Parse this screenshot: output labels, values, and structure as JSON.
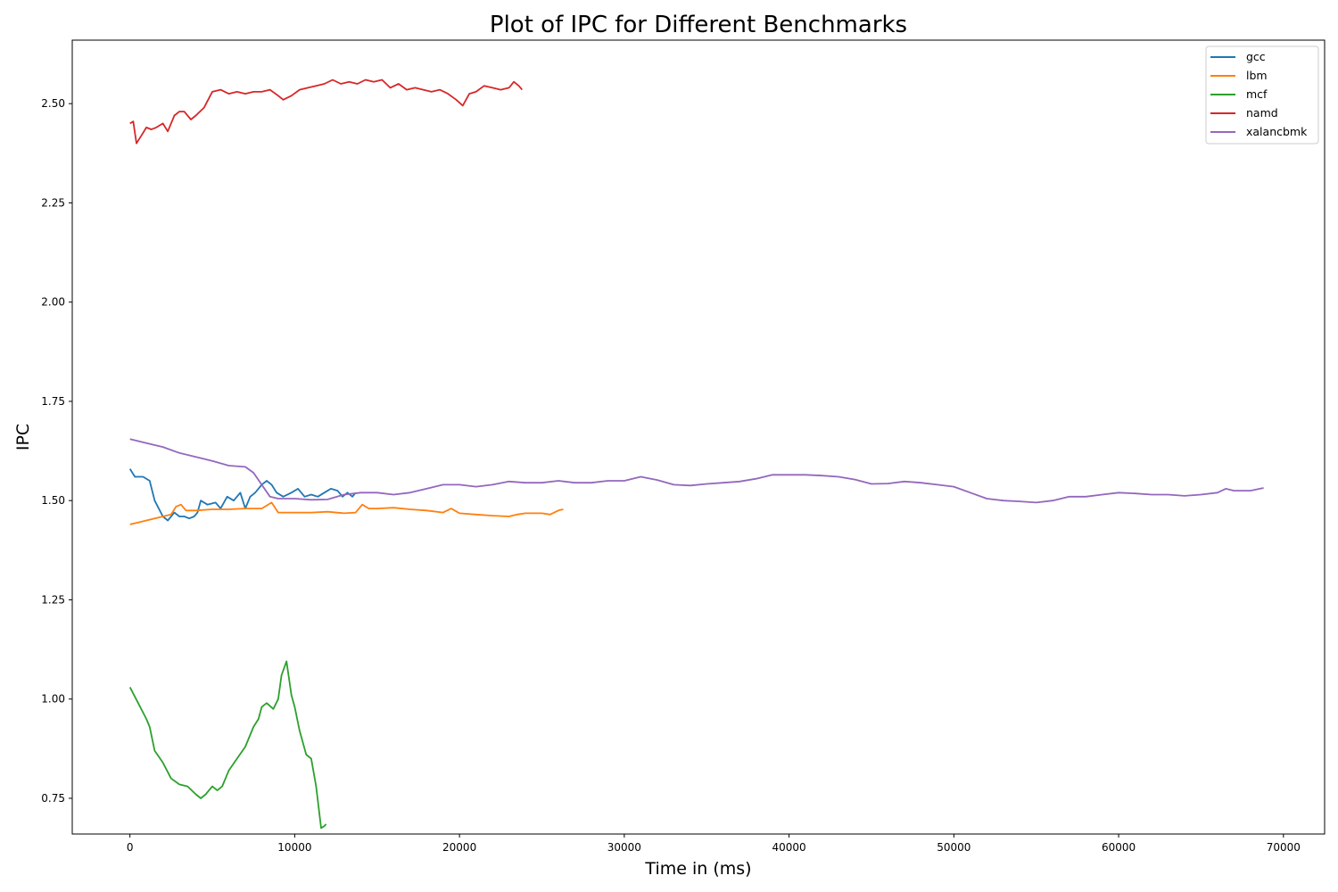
{
  "chart_data": {
    "type": "line",
    "title": "Plot of IPC for Different Benchmarks",
    "xlabel": "Time in (ms)",
    "ylabel": "IPC",
    "xlim": [
      -3500,
      72500
    ],
    "ylim": [
      0.66,
      2.66
    ],
    "xticks": [
      0,
      10000,
      20000,
      30000,
      40000,
      50000,
      60000,
      70000
    ],
    "yticks": [
      0.75,
      1.0,
      1.25,
      1.5,
      1.75,
      2.0,
      2.25,
      2.5
    ],
    "ytick_labels": [
      "0.75",
      "1.00",
      "1.25",
      "1.50",
      "1.75",
      "2.00",
      "2.25",
      "2.50"
    ],
    "grid": false,
    "legend_position": "top-right",
    "series": [
      {
        "name": "gcc",
        "color": "#1f77b4",
        "x": [
          0,
          300,
          800,
          1200,
          1500,
          2000,
          2300,
          2700,
          3000,
          3300,
          3600,
          3900,
          4100,
          4300,
          4700,
          5200,
          5500,
          5900,
          6300,
          6700,
          7000,
          7300,
          7600,
          8000,
          8300,
          8600,
          8900,
          9300,
          9800,
          10200,
          10600,
          11000,
          11400,
          11800,
          12200,
          12600,
          12900,
          13200,
          13500,
          13700
        ],
        "y": [
          1.58,
          1.56,
          1.56,
          1.55,
          1.5,
          1.46,
          1.45,
          1.47,
          1.46,
          1.46,
          1.455,
          1.46,
          1.47,
          1.5,
          1.49,
          1.495,
          1.48,
          1.51,
          1.5,
          1.52,
          1.48,
          1.51,
          1.52,
          1.54,
          1.55,
          1.54,
          1.52,
          1.51,
          1.52,
          1.53,
          1.51,
          1.515,
          1.51,
          1.52,
          1.53,
          1.525,
          1.51,
          1.52,
          1.51,
          1.52
        ]
      },
      {
        "name": "lbm",
        "color": "#ff7f0e",
        "x": [
          0,
          500,
          1000,
          1500,
          2000,
          2500,
          2800,
          3100,
          3400,
          4000,
          5000,
          6000,
          7000,
          8000,
          8600,
          9000,
          10000,
          11000,
          12000,
          13000,
          13700,
          14100,
          14500,
          15000,
          16000,
          17000,
          18000,
          19000,
          19500,
          20000,
          21000,
          22000,
          23000,
          23500,
          24000,
          25000,
          25500,
          26000,
          26300
        ],
        "y": [
          1.44,
          1.445,
          1.45,
          1.455,
          1.46,
          1.465,
          1.485,
          1.49,
          1.475,
          1.475,
          1.478,
          1.478,
          1.48,
          1.48,
          1.495,
          1.47,
          1.47,
          1.47,
          1.472,
          1.468,
          1.47,
          1.49,
          1.48,
          1.48,
          1.482,
          1.478,
          1.475,
          1.47,
          1.48,
          1.468,
          1.465,
          1.462,
          1.46,
          1.465,
          1.468,
          1.468,
          1.465,
          1.475,
          1.478
        ]
      },
      {
        "name": "mcf",
        "color": "#2ca02c",
        "x": [
          0,
          500,
          1000,
          1200,
          1500,
          2000,
          2500,
          3000,
          3500,
          4000,
          4300,
          4600,
          5000,
          5300,
          5600,
          6000,
          6500,
          7000,
          7500,
          7800,
          8000,
          8300,
          8700,
          9000,
          9200,
          9500,
          9800,
          10000,
          10300,
          10700,
          11000,
          11300,
          11600,
          11800,
          11900
        ],
        "y": [
          1.03,
          0.99,
          0.95,
          0.93,
          0.87,
          0.84,
          0.8,
          0.785,
          0.78,
          0.76,
          0.75,
          0.76,
          0.78,
          0.77,
          0.78,
          0.82,
          0.85,
          0.88,
          0.93,
          0.95,
          0.98,
          0.99,
          0.975,
          1.0,
          1.06,
          1.095,
          1.01,
          0.98,
          0.92,
          0.86,
          0.85,
          0.78,
          0.675,
          0.68,
          0.685
        ]
      },
      {
        "name": "namd",
        "color": "#d62728",
        "x": [
          0,
          200,
          400,
          700,
          1000,
          1300,
          1600,
          2000,
          2300,
          2700,
          3000,
          3300,
          3700,
          4000,
          4500,
          5000,
          5500,
          6000,
          6500,
          7000,
          7500,
          8000,
          8500,
          9000,
          9300,
          9800,
          10300,
          10800,
          11300,
          11800,
          12300,
          12800,
          13300,
          13800,
          14300,
          14800,
          15300,
          15800,
          16300,
          16800,
          17300,
          17800,
          18300,
          18800,
          19300,
          19800,
          20200,
          20600,
          21000,
          21500,
          22000,
          22500,
          23000,
          23300,
          23600,
          23800
        ],
        "y": [
          2.45,
          2.455,
          2.4,
          2.42,
          2.44,
          2.435,
          2.44,
          2.45,
          2.43,
          2.47,
          2.48,
          2.48,
          2.46,
          2.47,
          2.49,
          2.53,
          2.535,
          2.525,
          2.53,
          2.525,
          2.53,
          2.53,
          2.535,
          2.52,
          2.51,
          2.52,
          2.535,
          2.54,
          2.545,
          2.55,
          2.56,
          2.55,
          2.555,
          2.55,
          2.56,
          2.555,
          2.56,
          2.54,
          2.55,
          2.535,
          2.54,
          2.535,
          2.53,
          2.535,
          2.525,
          2.51,
          2.495,
          2.525,
          2.53,
          2.545,
          2.54,
          2.535,
          2.54,
          2.555,
          2.545,
          2.535
        ]
      },
      {
        "name": "xalancbmk",
        "color": "#9467bd",
        "x": [
          0,
          1000,
          2000,
          3000,
          4000,
          5000,
          6000,
          7000,
          7500,
          8000,
          8500,
          9000,
          10000,
          11000,
          12000,
          13000,
          14000,
          15000,
          16000,
          17000,
          18000,
          19000,
          20000,
          21000,
          22000,
          23000,
          24000,
          25000,
          26000,
          27000,
          28000,
          29000,
          30000,
          31000,
          32000,
          33000,
          34000,
          35000,
          36000,
          37000,
          38000,
          39000,
          40000,
          41000,
          42000,
          43000,
          44000,
          45000,
          46000,
          47000,
          48000,
          49000,
          50000,
          51000,
          52000,
          53000,
          54000,
          55000,
          56000,
          57000,
          58000,
          59000,
          60000,
          61000,
          62000,
          63000,
          64000,
          65000,
          66000,
          66500,
          67000,
          68000,
          68800
        ],
        "y": [
          1.655,
          1.645,
          1.635,
          1.62,
          1.61,
          1.6,
          1.588,
          1.585,
          1.57,
          1.54,
          1.51,
          1.505,
          1.505,
          1.502,
          1.503,
          1.515,
          1.52,
          1.52,
          1.515,
          1.52,
          1.53,
          1.54,
          1.54,
          1.535,
          1.54,
          1.548,
          1.545,
          1.545,
          1.55,
          1.545,
          1.545,
          1.55,
          1.55,
          1.56,
          1.552,
          1.54,
          1.538,
          1.542,
          1.545,
          1.548,
          1.555,
          1.565,
          1.565,
          1.565,
          1.563,
          1.56,
          1.553,
          1.542,
          1.543,
          1.548,
          1.545,
          1.54,
          1.535,
          1.52,
          1.505,
          1.5,
          1.498,
          1.495,
          1.5,
          1.51,
          1.51,
          1.515,
          1.52,
          1.518,
          1.515,
          1.515,
          1.512,
          1.515,
          1.52,
          1.53,
          1.525,
          1.525,
          1.532
        ]
      }
    ]
  }
}
